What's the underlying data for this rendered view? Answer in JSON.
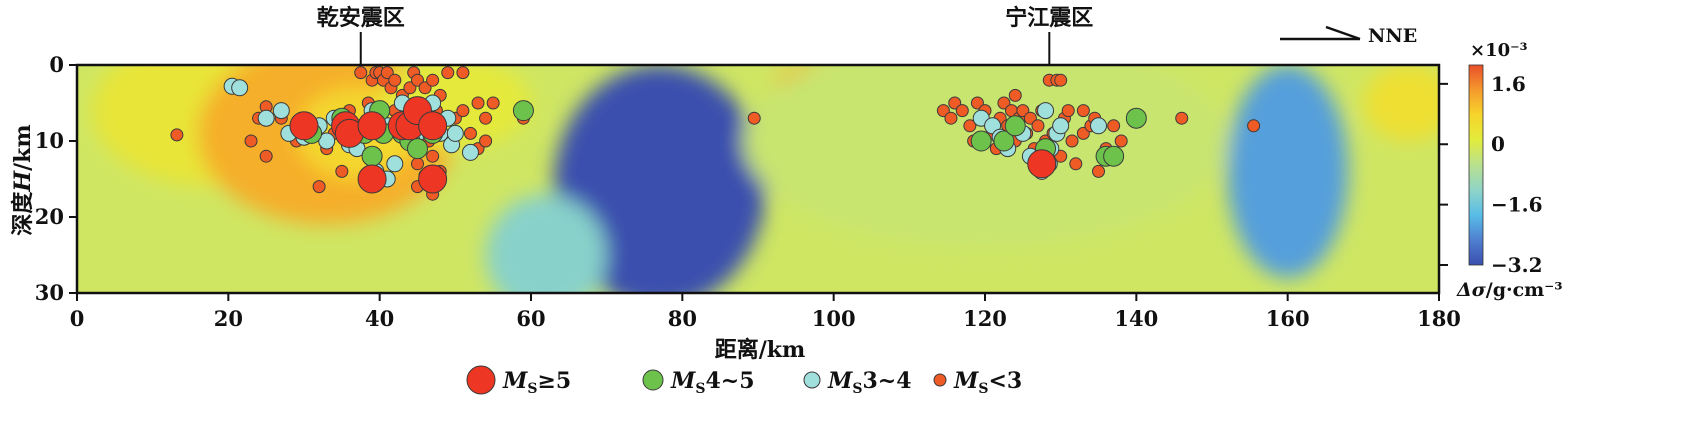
{
  "chart_data": {
    "type": "scatter",
    "title": "",
    "xlabel": "距离/km",
    "ylabel": {
      "prefix": "深度",
      "var": "H",
      "suffix": "/km"
    },
    "xlim": [
      0,
      180
    ],
    "ylim": [
      0,
      30
    ],
    "y_inverted": true,
    "grid": false,
    "x_ticks": [
      0,
      20,
      40,
      60,
      80,
      100,
      120,
      140,
      160,
      180
    ],
    "y_ticks": [
      0,
      10,
      20,
      30
    ],
    "top_labels": [
      {
        "text": "乾安震区",
        "x": 37.5
      },
      {
        "text": "宁江震区",
        "x": 128.5
      }
    ],
    "direction_label": "NNE",
    "colorbar": {
      "exponent_text": "×10⁻³",
      "unit_label": {
        "var": "Δσ",
        "unit": "/g·cm⁻³"
      },
      "range": [
        -3.2,
        2.1
      ],
      "ticks": [
        {
          "value": 1.6,
          "label": "1.6"
        },
        {
          "value": 0,
          "label": "0"
        },
        {
          "value": -1.6,
          "label": "−1.6"
        },
        {
          "value": -3.2,
          "label": "−3.2"
        }
      ],
      "stops": [
        "#3a4fae",
        "#4f7fd0",
        "#58bde8",
        "#8fd4c6",
        "#b9e08f",
        "#e2ec3c",
        "#f6d52b",
        "#f59a2c",
        "#e94f2a"
      ]
    },
    "background_field": [
      {
        "x": 18,
        "y": 6,
        "rx": 16,
        "ry": 10,
        "v": 0.3
      },
      {
        "x": 33,
        "y": 9,
        "rx": 17,
        "ry": 12,
        "v": 1.2
      },
      {
        "x": 37,
        "y": 9,
        "rx": 8,
        "ry": 6,
        "v": 0.7
      },
      {
        "x": 50,
        "y": 5,
        "rx": 10,
        "ry": 6,
        "v": 0.2
      },
      {
        "x": 77,
        "y": 16,
        "rx": 14,
        "ry": 16,
        "v": -3.2
      },
      {
        "x": 62,
        "y": 25,
        "rx": 8,
        "ry": 8,
        "v": -1.3
      },
      {
        "x": 98,
        "y": 3.5,
        "rx": 6,
        "ry": 4,
        "v": 1.2
      },
      {
        "x": 120,
        "y": 10,
        "rx": 32,
        "ry": 14,
        "v": -0.3
      },
      {
        "x": 160,
        "y": 14,
        "rx": 8,
        "ry": 14,
        "v": -2.2
      },
      {
        "x": 176,
        "y": 5,
        "rx": 6,
        "ry": 5,
        "v": 0.5
      }
    ],
    "field_base": -0.2,
    "legend": [
      {
        "id": "ms5",
        "label_pre": "M",
        "label_sub": "S",
        "label_post": "≥5",
        "color": "#ee3624",
        "r": 14
      },
      {
        "id": "ms45",
        "label_pre": "M",
        "label_sub": "S",
        "label_post": "4~5",
        "color": "#6cc24a",
        "r": 10
      },
      {
        "id": "ms34",
        "label_pre": "M",
        "label_sub": "S",
        "label_post": "3~4",
        "color": "#9fdfdc",
        "r": 8
      },
      {
        "id": "ms3",
        "label_pre": "M",
        "label_sub": "S",
        "label_post": "<3",
        "color": "#ef5b24",
        "r": 6
      }
    ],
    "series": [
      {
        "id": "ms3",
        "points": [
          [
            13.2,
            9.2
          ],
          [
            23,
            10
          ],
          [
            24,
            7
          ],
          [
            25,
            5.5
          ],
          [
            25,
            12
          ],
          [
            27,
            7
          ],
          [
            28,
            9
          ],
          [
            29,
            10
          ],
          [
            31,
            8
          ],
          [
            33,
            11
          ],
          [
            34,
            9
          ],
          [
            32,
            16
          ],
          [
            35,
            14
          ],
          [
            36,
            6
          ],
          [
            36,
            10
          ],
          [
            37.5,
            1
          ],
          [
            38.5,
            5
          ],
          [
            39,
            2
          ],
          [
            39.5,
            1
          ],
          [
            40,
            1
          ],
          [
            40.5,
            2
          ],
          [
            41,
            1
          ],
          [
            41.5,
            3
          ],
          [
            42,
            6
          ],
          [
            42,
            2
          ],
          [
            43,
            4
          ],
          [
            43,
            7
          ],
          [
            44,
            3
          ],
          [
            44.5,
            1
          ],
          [
            45,
            2
          ],
          [
            45,
            5
          ],
          [
            45.5,
            8
          ],
          [
            46,
            3
          ],
          [
            46.5,
            10
          ],
          [
            47,
            2
          ],
          [
            47,
            12
          ],
          [
            47,
            17
          ],
          [
            47.5,
            6
          ],
          [
            48,
            4
          ],
          [
            48,
            14
          ],
          [
            45,
            16
          ],
          [
            45,
            13
          ],
          [
            46,
            14.5
          ],
          [
            49,
            1
          ],
          [
            50,
            7
          ],
          [
            51,
            1
          ],
          [
            51,
            6
          ],
          [
            52,
            9
          ],
          [
            53,
            5
          ],
          [
            53,
            11
          ],
          [
            54,
            7
          ],
          [
            54,
            10
          ],
          [
            55,
            5
          ],
          [
            59,
            7
          ],
          [
            89.5,
            7
          ],
          [
            114.5,
            6
          ],
          [
            115.5,
            7
          ],
          [
            116,
            5
          ],
          [
            117,
            6
          ],
          [
            118,
            8
          ],
          [
            118.5,
            10
          ],
          [
            119,
            5
          ],
          [
            119.5,
            7
          ],
          [
            120,
            6
          ],
          [
            121,
            9
          ],
          [
            121.5,
            11
          ],
          [
            122,
            7
          ],
          [
            122.5,
            5
          ],
          [
            123,
            8
          ],
          [
            123.5,
            6
          ],
          [
            124,
            4
          ],
          [
            124,
            10
          ],
          [
            124.5,
            7
          ],
          [
            125,
            6
          ],
          [
            125.5,
            9
          ],
          [
            126,
            7
          ],
          [
            126.5,
            11
          ],
          [
            127,
            12
          ],
          [
            127,
            8
          ],
          [
            127.5,
            6
          ],
          [
            128,
            10
          ],
          [
            128.5,
            2
          ],
          [
            129,
            9
          ],
          [
            129.5,
            2
          ],
          [
            130,
            2
          ],
          [
            130,
            12
          ],
          [
            130.5,
            7
          ],
          [
            131,
            6
          ],
          [
            131.5,
            10
          ],
          [
            132,
            13
          ],
          [
            133,
            6
          ],
          [
            133,
            9
          ],
          [
            134,
            8
          ],
          [
            134.5,
            7
          ],
          [
            135,
            14
          ],
          [
            136,
            11
          ],
          [
            137,
            8
          ],
          [
            138,
            10
          ],
          [
            146,
            7
          ],
          [
            155.5,
            8
          ]
        ]
      },
      {
        "id": "ms34",
        "points": [
          [
            20.5,
            2.8
          ],
          [
            21.5,
            3
          ],
          [
            25,
            7
          ],
          [
            27,
            6
          ],
          [
            28,
            9
          ],
          [
            29.5,
            8
          ],
          [
            30,
            9.5
          ],
          [
            32,
            8
          ],
          [
            33,
            10
          ],
          [
            34,
            7
          ],
          [
            35,
            8
          ],
          [
            36,
            10.5
          ],
          [
            37,
            11
          ],
          [
            38,
            8
          ],
          [
            39,
            6
          ],
          [
            39.5,
            14
          ],
          [
            40,
            7
          ],
          [
            41,
            8
          ],
          [
            41,
            15
          ],
          [
            42,
            13
          ],
          [
            43,
            5
          ],
          [
            44,
            10
          ],
          [
            45,
            9
          ],
          [
            46,
            8
          ],
          [
            47,
            5
          ],
          [
            48,
            9
          ],
          [
            49,
            7
          ],
          [
            49.5,
            10.5
          ],
          [
            50,
            9
          ],
          [
            52,
            11.5
          ],
          [
            119.5,
            7
          ],
          [
            121,
            8
          ],
          [
            122,
            9.5
          ],
          [
            123,
            11
          ],
          [
            125,
            9
          ],
          [
            126,
            12
          ],
          [
            127,
            13
          ],
          [
            127.5,
            14
          ],
          [
            128,
            6
          ],
          [
            128.5,
            13
          ],
          [
            128.7,
            11
          ],
          [
            129.5,
            9
          ],
          [
            130,
            8
          ],
          [
            135,
            8
          ]
        ]
      },
      {
        "id": "ms45",
        "points": [
          [
            31,
            9
          ],
          [
            35,
            7
          ],
          [
            38,
            9
          ],
          [
            39,
            12
          ],
          [
            40,
            6
          ],
          [
            40.5,
            9
          ],
          [
            43,
            9
          ],
          [
            44,
            10
          ],
          [
            45,
            11
          ],
          [
            46,
            7
          ],
          [
            47,
            9
          ],
          [
            59,
            6
          ],
          [
            119.5,
            10
          ],
          [
            122.5,
            10
          ],
          [
            124,
            8
          ],
          [
            128,
            11
          ],
          [
            136,
            12
          ],
          [
            137,
            12
          ],
          [
            140,
            7
          ]
        ]
      },
      {
        "id": "ms5",
        "points": [
          [
            30,
            8
          ],
          [
            35.5,
            8
          ],
          [
            36,
            9
          ],
          [
            39,
            8
          ],
          [
            39,
            15
          ],
          [
            43,
            8
          ],
          [
            44,
            8
          ],
          [
            45,
            6
          ],
          [
            47,
            8
          ],
          [
            47,
            15
          ],
          [
            127.5,
            13
          ]
        ]
      }
    ]
  }
}
